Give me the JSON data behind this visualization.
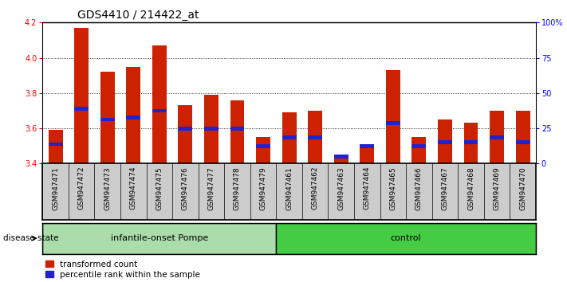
{
  "title": "GDS4410 / 214422_at",
  "samples": [
    "GSM947471",
    "GSM947472",
    "GSM947473",
    "GSM947474",
    "GSM947475",
    "GSM947476",
    "GSM947477",
    "GSM947478",
    "GSM947479",
    "GSM947461",
    "GSM947462",
    "GSM947463",
    "GSM947464",
    "GSM947465",
    "GSM947466",
    "GSM947467",
    "GSM947468",
    "GSM947469",
    "GSM947470"
  ],
  "red_values": [
    3.59,
    4.17,
    3.92,
    3.95,
    4.07,
    3.73,
    3.79,
    3.76,
    3.55,
    3.69,
    3.7,
    3.44,
    3.49,
    3.93,
    3.55,
    3.65,
    3.63,
    3.7,
    3.7
  ],
  "blue_positions": [
    3.51,
    3.71,
    3.65,
    3.66,
    3.7,
    3.6,
    3.6,
    3.6,
    3.5,
    3.55,
    3.55,
    3.44,
    3.5,
    3.63,
    3.5,
    3.52,
    3.52,
    3.55,
    3.52
  ],
  "groups": {
    "infantile-onset Pompe": 9,
    "control": 10
  },
  "pompe_color": "#aaddaa",
  "control_color": "#44cc44",
  "ylim": [
    3.4,
    4.2
  ],
  "right_ylim": [
    0,
    100
  ],
  "right_yticks": [
    0,
    25,
    50,
    75,
    100
  ],
  "right_yticklabels": [
    "0",
    "25",
    "50",
    "75",
    "100%"
  ],
  "left_yticks": [
    3.4,
    3.6,
    3.8,
    4.0,
    4.2
  ],
  "bar_color": "#cc2200",
  "blue_color": "#2222cc",
  "bar_width": 0.55,
  "disease_state_label": "disease state",
  "legend_items": [
    "transformed count",
    "percentile rank within the sample"
  ],
  "title_fontsize": 10,
  "tick_fontsize": 7,
  "label_fontsize": 8
}
